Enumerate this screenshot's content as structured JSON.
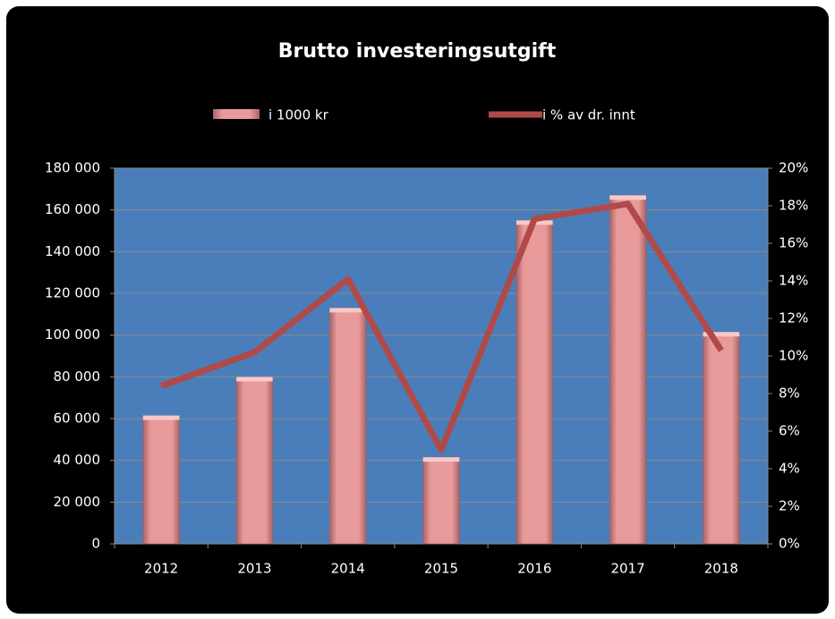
{
  "chart_data": {
    "type": "bar_line",
    "title": "Brutto investeringsutgift",
    "categories": [
      "2012",
      "2013",
      "2014",
      "2015",
      "2016",
      "2017",
      "2018"
    ],
    "series": [
      {
        "name": "i 1000 kr",
        "color": "#e8999a",
        "type": "bar",
        "values": [
          61500,
          80000,
          113000,
          41500,
          155000,
          167000,
          101500
        ]
      },
      {
        "name": "i % av dr. innt",
        "color": "#b04a48",
        "type": "line",
        "axis": "y2",
        "values": [
          8.4,
          10.2,
          14.1,
          5.0,
          17.3,
          18.1,
          10.3
        ]
      }
    ],
    "ylim": [
      0,
      180000
    ],
    "yticks": [
      0,
      {
        "value": 20000,
        "label": "20 000"
      },
      {
        "value": 40000,
        "label": "40 000"
      },
      {
        "value": 60000,
        "label": "60 000"
      },
      {
        "value": 80000,
        "label": "80 000"
      },
      {
        "value": 100000,
        "label": "100 000"
      },
      {
        "value": 120000,
        "label": "120 000"
      },
      {
        "value": 140000,
        "label": "140 000"
      },
      {
        "value": 160000,
        "label": "160 000"
      },
      {
        "value": 180000,
        "label": "180 000"
      }
    ],
    "y2lim": [
      0,
      20
    ],
    "y2ticks": [
      {
        "value": 0,
        "label": "0%"
      },
      {
        "value": 2,
        "label": "2%"
      },
      {
        "value": 4,
        "label": "4%"
      },
      {
        "value": 6,
        "label": "6%"
      },
      {
        "value": 8,
        "label": "8%"
      },
      {
        "value": 10,
        "label": "10%"
      },
      {
        "value": 12,
        "label": "12%"
      },
      {
        "value": 14,
        "label": "14%"
      },
      {
        "value": 16,
        "label": "16%"
      },
      {
        "value": 18,
        "label": "18%"
      },
      {
        "value": 20,
        "label": "20%"
      }
    ],
    "grid": true,
    "legend": "top",
    "plot_background": "#4a7ebb"
  }
}
